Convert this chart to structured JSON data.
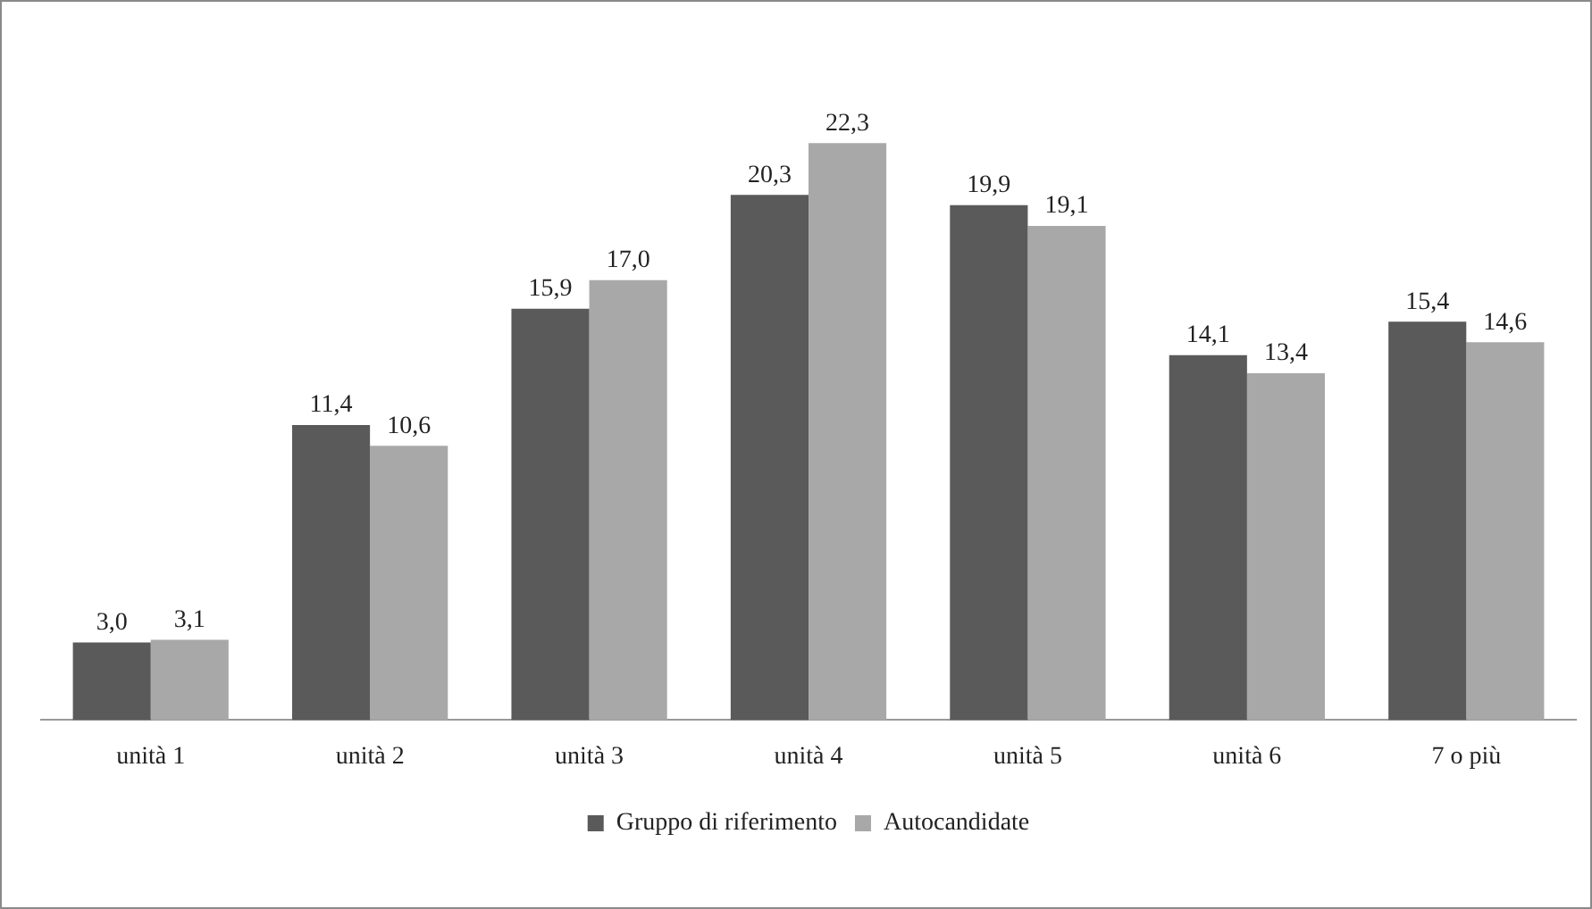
{
  "chart_data": {
    "type": "bar",
    "categories": [
      "unità 1",
      "unità 2",
      "unità 3",
      "unità 4",
      "unità 5",
      "unità 6",
      "7 o più"
    ],
    "series": [
      {
        "name": "Gruppo di riferimento",
        "color": "#5a5a5a",
        "values": [
          3.0,
          11.4,
          15.9,
          20.3,
          19.9,
          14.1,
          15.4
        ],
        "value_labels": [
          "3,0",
          "11,4",
          "15,9",
          "20,3",
          "19,9",
          "14,1",
          "15,4"
        ]
      },
      {
        "name": "Autocandidate",
        "color": "#a8a8a8",
        "values": [
          3.1,
          10.6,
          17.0,
          22.3,
          19.1,
          13.4,
          14.6
        ],
        "value_labels": [
          "3,1",
          "10,6",
          "17,0",
          "22,3",
          "19,1",
          "13,4",
          "14,6"
        ]
      }
    ],
    "tick_labels": "x",
    "legend": "bottom"
  }
}
